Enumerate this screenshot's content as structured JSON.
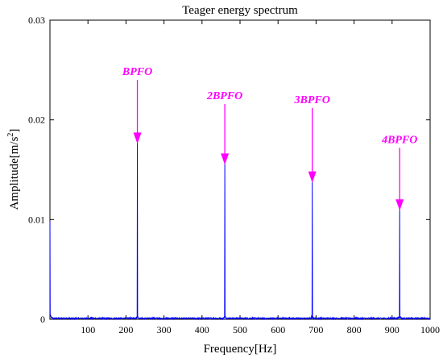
{
  "chart_data": {
    "type": "line",
    "title": "Teager energy spectrum",
    "xlabel": "Frequency[Hz]",
    "ylabel_text": "Amplitude[m/s",
    "ylabel_exponent": "2",
    "ylabel_close": "]",
    "xlim": [
      0,
      1000
    ],
    "ylim": [
      0,
      0.03
    ],
    "xticks": [
      100,
      200,
      300,
      400,
      500,
      600,
      700,
      800,
      900,
      1000
    ],
    "yticks": [
      0,
      0.01,
      0.02,
      0.03
    ],
    "ytick_labels": [
      "0",
      "0.01",
      "0.02",
      "0.03"
    ],
    "grid": false,
    "series": [
      {
        "color": "#0000ff",
        "peaks": [
          {
            "x": 0,
            "y": 0.0098
          },
          {
            "x": 230,
            "y": 0.0178
          },
          {
            "x": 460,
            "y": 0.0158
          },
          {
            "x": 690,
            "y": 0.0138
          },
          {
            "x": 920,
            "y": 0.0112
          }
        ]
      }
    ],
    "annotations": [
      {
        "text": "BPFO",
        "x": 230,
        "arrow_top": 0.024,
        "arrow_tip": 0.0176
      },
      {
        "text": "2BPFO",
        "x": 460,
        "arrow_top": 0.0216,
        "arrow_tip": 0.0155
      },
      {
        "text": "3BPFO",
        "x": 690,
        "arrow_top": 0.0212,
        "arrow_tip": 0.0137
      },
      {
        "text": "4BPFO",
        "x": 920,
        "arrow_top": 0.0172,
        "arrow_tip": 0.0109
      }
    ],
    "annotation_color": "#ff00ff"
  }
}
